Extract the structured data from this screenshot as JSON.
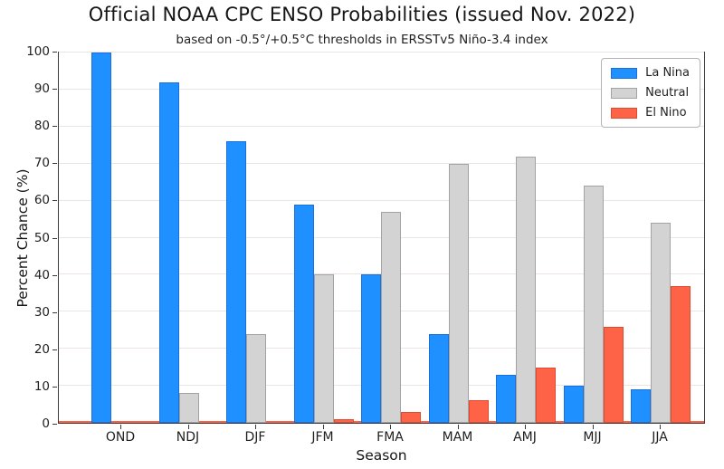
{
  "chart_data": {
    "type": "bar",
    "title": "Official NOAA CPC ENSO Probabilities (issued Nov. 2022)",
    "subtitle": "based on -0.5°/+0.5°C thresholds in ERSSTv5 Niño-3.4 index",
    "xlabel": "Season",
    "ylabel": "Percent Chance (%)",
    "ylim": [
      0,
      100
    ],
    "yticks": [
      0,
      10,
      20,
      30,
      40,
      50,
      60,
      70,
      80,
      90,
      100
    ],
    "grid": true,
    "legend_position": "upper right",
    "categories": [
      "OND",
      "NDJ",
      "DJF",
      "JFM",
      "FMA",
      "MAM",
      "AMJ",
      "MJJ",
      "JJA"
    ],
    "series": [
      {
        "name": "La Nina",
        "color": "#1e90ff",
        "edge_color": "#1b6fd8",
        "values": [
          100,
          92,
          76,
          59,
          40,
          24,
          13,
          10,
          9
        ]
      },
      {
        "name": "Neutral",
        "color": "#d3d3d3",
        "edge_color": "#a3a3a3",
        "values": [
          0,
          8,
          24,
          40,
          57,
          70,
          72,
          64,
          54
        ]
      },
      {
        "name": "El Nino",
        "color": "#ff6347",
        "edge_color": "#e04a2e",
        "values": [
          0,
          0,
          0,
          1,
          3,
          6,
          15,
          26,
          37
        ]
      }
    ],
    "zero_line_color": "#ff6347",
    "colors": {
      "grid": "#ece3e3",
      "spine": "#3a3a3a",
      "legend_border": "#b3b3b3"
    }
  }
}
